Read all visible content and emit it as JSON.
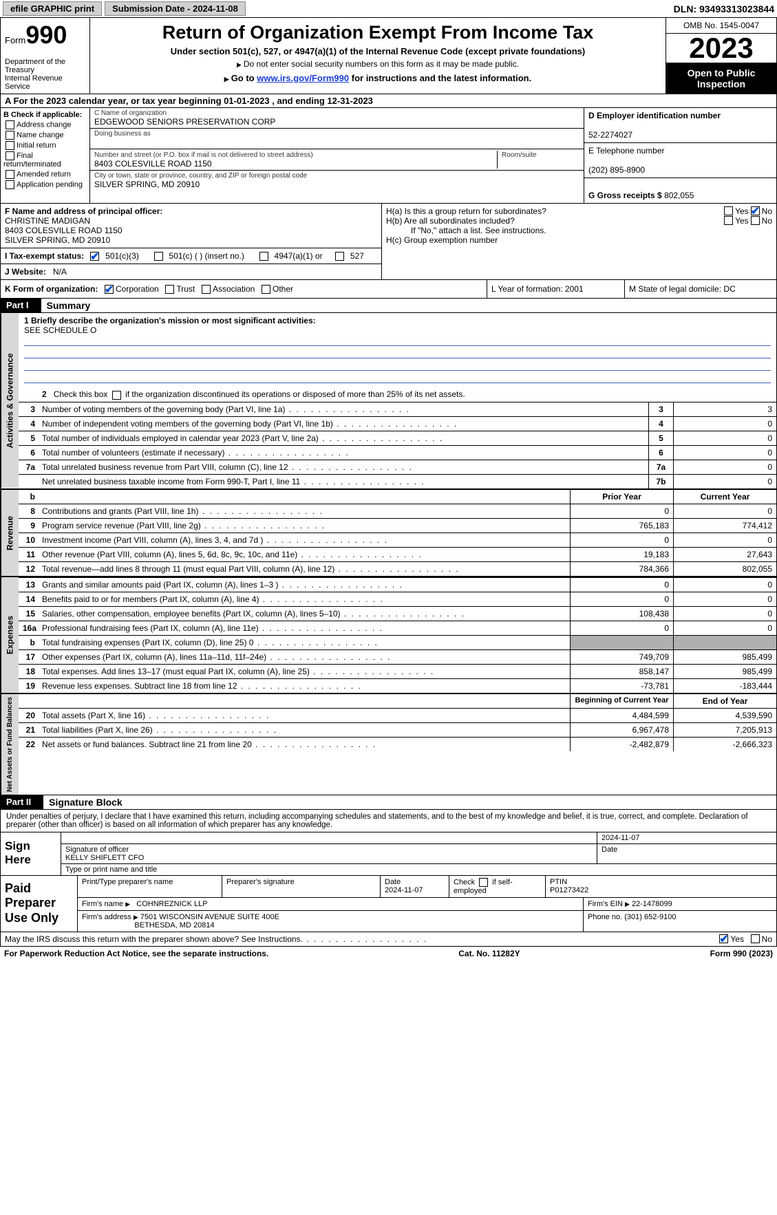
{
  "top": {
    "efile": "efile GRAPHIC print",
    "submission": "Submission Date - 2024-11-08",
    "dln": "DLN: 93493313023844"
  },
  "header": {
    "form_prefix": "Form",
    "form_num": "990",
    "dept": "Department of the Treasury",
    "irs": "Internal Revenue Service",
    "title": "Return of Organization Exempt From Income Tax",
    "sub": "Under section 501(c), 527, or 4947(a)(1) of the Internal Revenue Code (except private foundations)",
    "sub2": "Do not enter social security numbers on this form as it may be made public.",
    "goto_pre": "Go to ",
    "goto_link": "www.irs.gov/Form990",
    "goto_post": " for instructions and the latest information.",
    "omb": "OMB No. 1545-0047",
    "year": "2023",
    "open": "Open to Public Inspection"
  },
  "rowA": "A For the 2023 calendar year, or tax year beginning 01-01-2023    , and ending 12-31-2023",
  "colB": {
    "title": "B Check if applicable:",
    "items": [
      "Address change",
      "Name change",
      "Initial return",
      "Final return/terminated",
      "Amended return",
      "Application pending"
    ]
  },
  "colC": {
    "name_lbl": "C Name of organization",
    "name": "EDGEWOOD SENIORS PRESERVATION CORP",
    "dba_lbl": "Doing business as",
    "dba": "",
    "addr_lbl": "Number and street (or P.O. box if mail is not delivered to street address)",
    "addr": "8403 COLESVILLE ROAD 1150",
    "room_lbl": "Room/suite",
    "city_lbl": "City or town, state or province, country, and ZIP or foreign postal code",
    "city": "SILVER SPRING, MD   20910"
  },
  "colDE": {
    "d_lbl": "D Employer identification number",
    "d_val": "52-2274027",
    "e_lbl": "E Telephone number",
    "e_val": "(202) 895-8900",
    "g_lbl": "G Gross receipts $ ",
    "g_val": "802,055"
  },
  "rowF": {
    "lbl": "F Name and address of principal officer:",
    "name": "CHRISTINE MADIGAN",
    "addr1": "8403 COLESVILLE ROAD 1150",
    "addr2": "SILVER SPRING, MD  20910"
  },
  "rowH": {
    "ha": "H(a)  Is this a group return for subordinates?",
    "hb": "H(b)  Are all subordinates included?",
    "hb2": "If \"No,\" attach a list. See instructions.",
    "hc": "H(c)  Group exemption number  "
  },
  "rowI": {
    "lbl": "I   Tax-exempt status:",
    "o1": "501(c)(3)",
    "o2": "501(c) (  ) (insert no.)",
    "o3": "4947(a)(1) or",
    "o4": "527"
  },
  "rowJ": {
    "lbl": "J   Website:  ",
    "val": "N/A"
  },
  "rowK": {
    "k": "K Form of organization:",
    "k_opts": [
      "Corporation",
      "Trust",
      "Association",
      "Other"
    ],
    "l": "L Year of formation: 2001",
    "m": "M State of legal domicile: DC"
  },
  "parts": {
    "p1": "Part I",
    "p1_title": "Summary",
    "p2": "Part II",
    "p2_title": "Signature Block"
  },
  "summary": {
    "mission_lbl": "1   Briefly describe the organization's mission or most significant activities:",
    "mission": "SEE SCHEDULE O",
    "line2": "2   Check this box        if the organization discontinued its operations or disposed of more than 25% of its net assets.",
    "lines_gov": [
      {
        "n": "3",
        "d": "Number of voting members of the governing body (Part VI, line 1a)",
        "box": "3",
        "v": "3"
      },
      {
        "n": "4",
        "d": "Number of independent voting members of the governing body (Part VI, line 1b)",
        "box": "4",
        "v": "0"
      },
      {
        "n": "5",
        "d": "Total number of individuals employed in calendar year 2023 (Part V, line 2a)",
        "box": "5",
        "v": "0"
      },
      {
        "n": "6",
        "d": "Total number of volunteers (estimate if necessary)",
        "box": "6",
        "v": "0"
      },
      {
        "n": "7a",
        "d": "Total unrelated business revenue from Part VIII, column (C), line 12",
        "box": "7a",
        "v": "0"
      },
      {
        "n": "",
        "d": "Net unrelated business taxable income from Form 990-T, Part I, line 11",
        "box": "7b",
        "v": "0"
      }
    ],
    "rev_hdr": {
      "c1": "Prior Year",
      "c2": "Current Year"
    },
    "lines_rev": [
      {
        "n": "8",
        "d": "Contributions and grants (Part VIII, line 1h)",
        "v1": "0",
        "v2": "0"
      },
      {
        "n": "9",
        "d": "Program service revenue (Part VIII, line 2g)",
        "v1": "765,183",
        "v2": "774,412"
      },
      {
        "n": "10",
        "d": "Investment income (Part VIII, column (A), lines 3, 4, and 7d )",
        "v1": "0",
        "v2": "0"
      },
      {
        "n": "11",
        "d": "Other revenue (Part VIII, column (A), lines 5, 6d, 8c, 9c, 10c, and 11e)",
        "v1": "19,183",
        "v2": "27,643"
      },
      {
        "n": "12",
        "d": "Total revenue—add lines 8 through 11 (must equal Part VIII, column (A), line 12)",
        "v1": "784,366",
        "v2": "802,055"
      }
    ],
    "lines_exp": [
      {
        "n": "13",
        "d": "Grants and similar amounts paid (Part IX, column (A), lines 1–3 )",
        "v1": "0",
        "v2": "0"
      },
      {
        "n": "14",
        "d": "Benefits paid to or for members (Part IX, column (A), line 4)",
        "v1": "0",
        "v2": "0"
      },
      {
        "n": "15",
        "d": "Salaries, other compensation, employee benefits (Part IX, column (A), lines 5–10)",
        "v1": "108,438",
        "v2": "0"
      },
      {
        "n": "16a",
        "d": "Professional fundraising fees (Part IX, column (A), line 11e)",
        "v1": "0",
        "v2": "0"
      },
      {
        "n": "b",
        "d": "Total fundraising expenses (Part IX, column (D), line 25) 0",
        "v1": "",
        "v2": "",
        "gray": true
      },
      {
        "n": "17",
        "d": "Other expenses (Part IX, column (A), lines 11a–11d, 11f–24e)",
        "v1": "749,709",
        "v2": "985,499"
      },
      {
        "n": "18",
        "d": "Total expenses. Add lines 13–17 (must equal Part IX, column (A), line 25)",
        "v1": "858,147",
        "v2": "985,499"
      },
      {
        "n": "19",
        "d": "Revenue less expenses. Subtract line 18 from line 12",
        "v1": "-73,781",
        "v2": "-183,444"
      }
    ],
    "net_hdr": {
      "c1": "Beginning of Current Year",
      "c2": "End of Year"
    },
    "lines_net": [
      {
        "n": "20",
        "d": "Total assets (Part X, line 16)",
        "v1": "4,484,599",
        "v2": "4,539,590"
      },
      {
        "n": "21",
        "d": "Total liabilities (Part X, line 26)",
        "v1": "6,967,478",
        "v2": "7,205,913"
      },
      {
        "n": "22",
        "d": "Net assets or fund balances. Subtract line 21 from line 20",
        "v1": "-2,482,879",
        "v2": "-2,666,323"
      }
    ],
    "tabs": {
      "gov": "Activities & Governance",
      "rev": "Revenue",
      "exp": "Expenses",
      "net": "Net Assets or Fund Balances"
    }
  },
  "sig": {
    "text": "Under penalties of perjury, I declare that I have examined this return, including accompanying schedules and statements, and to the best of my knowledge and belief, it is true, correct, and complete. Declaration of preparer (other than officer) is based on all information of which preparer has any knowledge.",
    "sign_lbl": "Sign Here",
    "date1": "2024-11-07",
    "sig_of": "Signature of officer",
    "sig_date": "Date",
    "officer": "KELLY SHIFLETT CFO",
    "type_lbl": "Type or print name and title"
  },
  "prep": {
    "lbl": "Paid Preparer Use Only",
    "h1": "Print/Type preparer's name",
    "h2": "Preparer's signature",
    "h3": "Date",
    "date": "2024-11-07",
    "h4": "Check         if self-employed",
    "h5": "PTIN",
    "ptin": "P01273422",
    "firm_lbl": "Firm's name     ",
    "firm": "COHNREZNICK LLP",
    "ein_lbl": "Firm's EIN  ",
    "ein": "22-1478099",
    "addr_lbl": "Firm's address ",
    "addr1": "7501 WISCONSIN AVENUE SUITE 400E",
    "addr2": "BETHESDA, MD  20814",
    "phone_lbl": "Phone no. ",
    "phone": "(301) 652-9100"
  },
  "footer": {
    "q": "May the IRS discuss this return with the preparer shown above? See Instructions.",
    "pra": "For Paperwork Reduction Act Notice, see the separate instructions.",
    "cat": "Cat. No. 11282Y",
    "form": "Form 990 (2023)"
  }
}
